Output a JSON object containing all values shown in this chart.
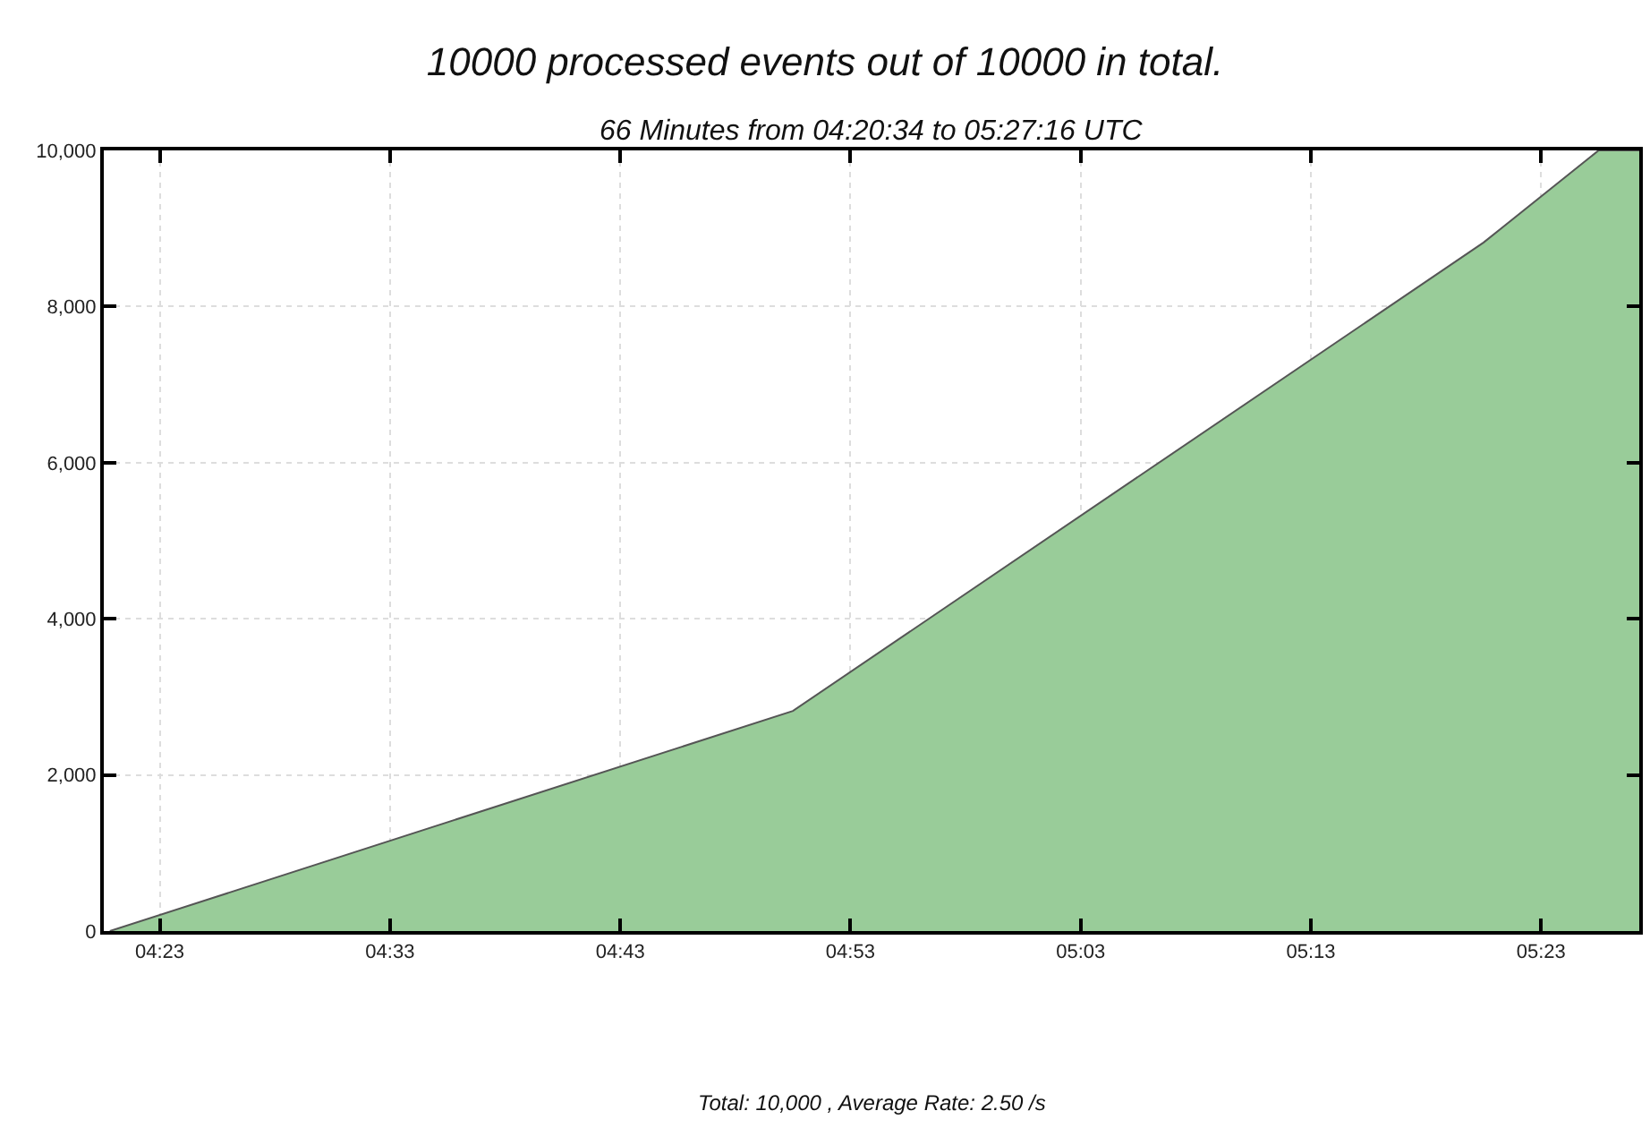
{
  "chart_data": {
    "type": "area",
    "title": "10000 processed events out of 10000 in total.",
    "subtitle": "66 Minutes from 04:20:34 to 05:27:16 UTC",
    "x": [
      4.3472,
      4.8417,
      5.3417,
      5.425,
      5.4544
    ],
    "series": [
      {
        "color": "#99cc99",
        "values": [
          0,
          2820,
          8820,
          10000,
          10000
        ]
      }
    ],
    "xlim": [
      4.3428,
      5.4544
    ],
    "xticks": [
      {
        "value": 4.3833,
        "label": "04:23"
      },
      {
        "value": 4.55,
        "label": "04:33"
      },
      {
        "value": 4.7167,
        "label": "04:43"
      },
      {
        "value": 4.8833,
        "label": "04:53"
      },
      {
        "value": 5.05,
        "label": "05:03"
      },
      {
        "value": 5.2167,
        "label": "05:13"
      },
      {
        "value": 5.3833,
        "label": "05:23"
      }
    ],
    "ylim": [
      0,
      10000
    ],
    "yticks": [
      {
        "value": 0,
        "label": "0"
      },
      {
        "value": 2000,
        "label": "2,000"
      },
      {
        "value": 4000,
        "label": "4,000"
      },
      {
        "value": 6000,
        "label": "6,000"
      },
      {
        "value": 8000,
        "label": "8,000"
      },
      {
        "value": 10000,
        "label": "10,000"
      }
    ],
    "grid": true,
    "legend": false,
    "annotations": [
      "Total: 10,000 , Average Rate: 2.50 /s"
    ]
  }
}
